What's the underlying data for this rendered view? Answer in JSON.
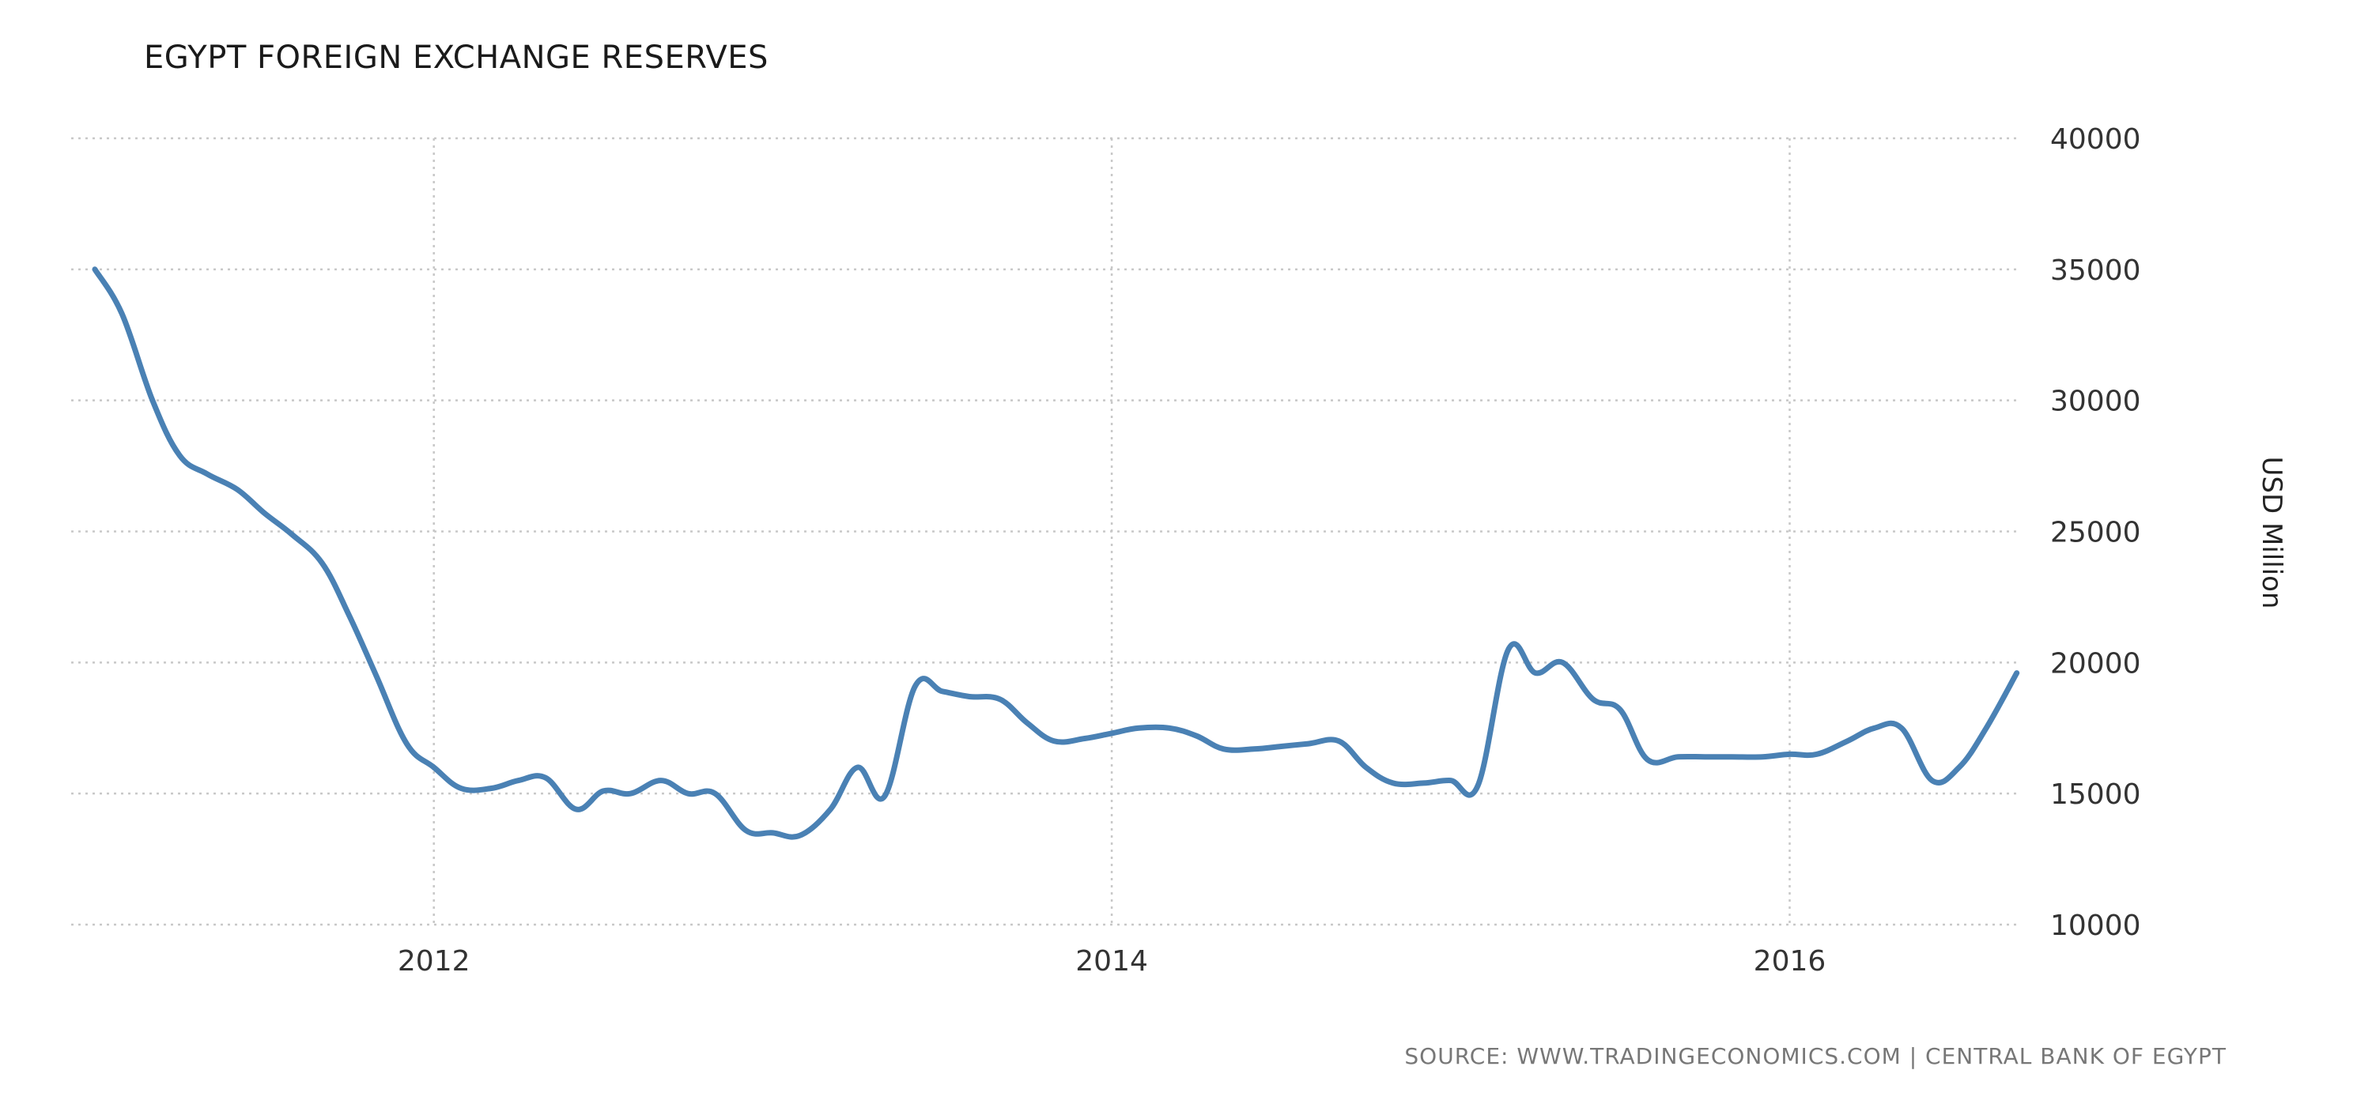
{
  "chart_data": {
    "type": "line",
    "title": "EGYPT FOREIGN EXCHANGE RESERVES",
    "ylabel": "USD Million",
    "source": "SOURCE: WWW.TRADINGECONOMICS.COM | CENTRAL BANK OF EGYPT",
    "ylim": [
      10000,
      40000
    ],
    "yticks": [
      10000,
      15000,
      20000,
      25000,
      30000,
      35000,
      40000
    ],
    "xticks": [
      "2012",
      "2014",
      "2016"
    ],
    "xlim": [
      2010.93,
      2016.68
    ],
    "grid": true,
    "color": "#4a81b4",
    "x": [
      2011.0,
      2011.08,
      2011.17,
      2011.25,
      2011.33,
      2011.42,
      2011.5,
      2011.58,
      2011.67,
      2011.75,
      2011.83,
      2011.92,
      2012.0,
      2012.08,
      2012.17,
      2012.25,
      2012.33,
      2012.42,
      2012.5,
      2012.58,
      2012.67,
      2012.75,
      2012.83,
      2012.92,
      2013.0,
      2013.08,
      2013.17,
      2013.25,
      2013.33,
      2013.42,
      2013.5,
      2013.58,
      2013.67,
      2013.75,
      2013.83,
      2013.92,
      2014.0,
      2014.08,
      2014.17,
      2014.25,
      2014.33,
      2014.42,
      2014.5,
      2014.58,
      2014.67,
      2014.75,
      2014.83,
      2014.92,
      2015.0,
      2015.08,
      2015.17,
      2015.25,
      2015.33,
      2015.42,
      2015.5,
      2015.58,
      2015.67,
      2015.75,
      2015.83,
      2015.92,
      2016.0,
      2016.08,
      2016.17,
      2016.25,
      2016.33,
      2016.42,
      2016.5,
      2016.58,
      2016.67
    ],
    "y": [
      35000,
      33300,
      30000,
      27900,
      27200,
      26600,
      25700,
      24900,
      23800,
      21800,
      19500,
      16900,
      16000,
      15200,
      15200,
      15500,
      15600,
      14400,
      15100,
      15000,
      15500,
      15000,
      15000,
      13600,
      13500,
      13400,
      14400,
      16000,
      14900,
      19100,
      18900,
      18700,
      18600,
      17700,
      17000,
      17100,
      17300,
      17500,
      17500,
      17200,
      16700,
      16700,
      16800,
      16900,
      17000,
      16000,
      15400,
      15400,
      15500,
      15300,
      20500,
      19600,
      20000,
      18600,
      18200,
      16300,
      16400,
      16400,
      16400,
      16400,
      16500,
      16500,
      17000,
      17500,
      17500,
      15500,
      16000,
      17500,
      19600
    ]
  }
}
